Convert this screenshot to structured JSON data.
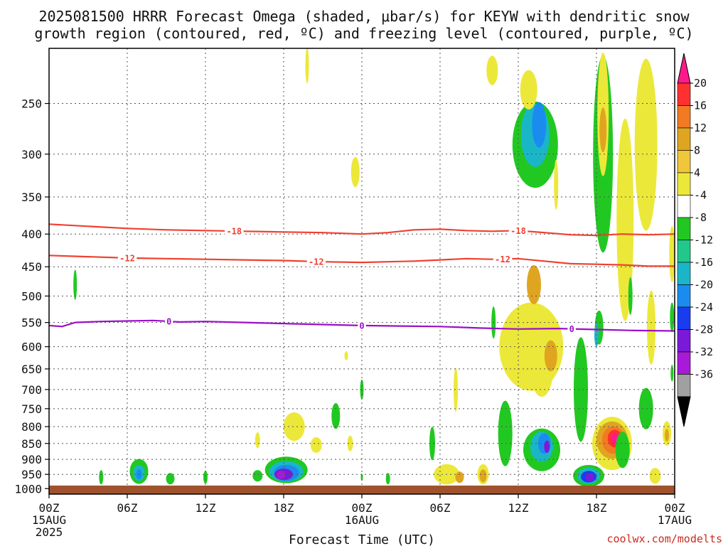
{
  "chart_data": {
    "type": "heatmap",
    "title_line1": "2025081500 HRRR Forecast Omega (shaded, μbar/s) for KEYW with dendritic snow",
    "title_line2": "growth region (contoured, red, ºC) and freezing level (contoured, purple, ºC)",
    "xlabel": "Forecast Time (UTC)",
    "credit": "coolwx.com/modelts",
    "x_ticks": [
      {
        "h": 0,
        "label": "00Z",
        "sub1": "15AUG",
        "sub2": "2025"
      },
      {
        "h": 6,
        "label": "06Z",
        "sub1": "",
        "sub2": ""
      },
      {
        "h": 12,
        "label": "12Z",
        "sub1": "",
        "sub2": ""
      },
      {
        "h": 18,
        "label": "18Z",
        "sub1": "",
        "sub2": ""
      },
      {
        "h": 24,
        "label": "00Z",
        "sub1": "16AUG",
        "sub2": ""
      },
      {
        "h": 30,
        "label": "06Z",
        "sub1": "",
        "sub2": ""
      },
      {
        "h": 36,
        "label": "12Z",
        "sub1": "",
        "sub2": ""
      },
      {
        "h": 42,
        "label": "18Z",
        "sub1": "",
        "sub2": ""
      },
      {
        "h": 48,
        "label": "00Z",
        "sub1": "17AUG",
        "sub2": ""
      }
    ],
    "y_ticks": [
      250,
      300,
      350,
      400,
      450,
      500,
      550,
      600,
      650,
      700,
      750,
      800,
      850,
      900,
      950,
      1000
    ],
    "xlim_hours": [
      0,
      48
    ],
    "ylim_hPa": [
      1020,
      205
    ],
    "y_scale": "log",
    "grid": true,
    "colorbar": {
      "levels": [
        20,
        16,
        12,
        8,
        4,
        -4,
        -8,
        -12,
        -16,
        -20,
        -24,
        -28,
        -32,
        -36
      ],
      "colors": [
        "#ff1a8c",
        "#ff3030",
        "#f27a22",
        "#e0a520",
        "#f0c63a",
        "#ece83a",
        "#ffffff",
        "#22c822",
        "#22c88a",
        "#1ab6c8",
        "#1a8cf0",
        "#1a3cf0",
        "#7a1ad8",
        "#a81ad8",
        "#a0a0a0",
        "#000000"
      ]
    },
    "contours": [
      {
        "name": "-18",
        "color": "#ef4030",
        "labels": [
          {
            "h": 14.2,
            "label": "-18"
          },
          {
            "h": 36.0,
            "label": "-18"
          }
        ],
        "points": [
          [
            0,
            386
          ],
          [
            3,
            389
          ],
          [
            6,
            392
          ],
          [
            9,
            394
          ],
          [
            12,
            395
          ],
          [
            15,
            396
          ],
          [
            18,
            397
          ],
          [
            21,
            398
          ],
          [
            24,
            400
          ],
          [
            26,
            398
          ],
          [
            28,
            394
          ],
          [
            30,
            393
          ],
          [
            32,
            395
          ],
          [
            34,
            396
          ],
          [
            36,
            395
          ],
          [
            38,
            398
          ],
          [
            40,
            401
          ],
          [
            42,
            402
          ],
          [
            44,
            400
          ],
          [
            46,
            401
          ],
          [
            48,
            400
          ]
        ]
      },
      {
        "name": "-12",
        "color": "#ef4030",
        "labels": [
          {
            "h": 6.0,
            "label": "-12"
          },
          {
            "h": 20.5,
            "label": "-12"
          },
          {
            "h": 34.8,
            "label": "-12"
          }
        ],
        "points": [
          [
            0,
            432
          ],
          [
            3,
            434
          ],
          [
            6,
            436
          ],
          [
            9,
            437
          ],
          [
            12,
            438
          ],
          [
            15,
            439
          ],
          [
            18,
            440
          ],
          [
            21,
            442
          ],
          [
            24,
            443
          ],
          [
            26,
            442
          ],
          [
            28,
            441
          ],
          [
            30,
            439
          ],
          [
            32,
            437
          ],
          [
            34,
            438
          ],
          [
            36,
            437
          ],
          [
            38,
            441
          ],
          [
            40,
            445
          ],
          [
            42,
            446
          ],
          [
            44,
            447
          ],
          [
            46,
            449
          ],
          [
            48,
            449
          ]
        ]
      },
      {
        "name": "0",
        "color": "#9a10c8",
        "labels": [
          {
            "h": 9.2,
            "label": "0"
          },
          {
            "h": 24.0,
            "label": "0"
          },
          {
            "h": 40.1,
            "label": "0"
          }
        ],
        "points": [
          [
            0,
            556
          ],
          [
            1,
            558
          ],
          [
            2,
            550
          ],
          [
            4,
            548
          ],
          [
            6,
            547
          ],
          [
            8,
            546
          ],
          [
            10,
            549
          ],
          [
            12,
            548
          ],
          [
            15,
            550
          ],
          [
            18,
            552
          ],
          [
            21,
            554
          ],
          [
            24,
            556
          ],
          [
            27,
            557
          ],
          [
            30,
            558
          ],
          [
            33,
            561
          ],
          [
            36,
            563
          ],
          [
            39,
            562
          ],
          [
            42,
            564
          ],
          [
            45,
            566
          ],
          [
            48,
            567
          ]
        ]
      }
    ],
    "blobs": [
      {
        "h": 2.0,
        "p": 480,
        "rx": 2.5,
        "ry": 45,
        "v": -6
      },
      {
        "h": 4.0,
        "p": 960,
        "rx": 3,
        "ry": 35,
        "v": -6
      },
      {
        "h": 6.9,
        "p": 940,
        "rx": 13,
        "ry": 70,
        "v": -6
      },
      {
        "h": 6.9,
        "p": 945,
        "rx": 8,
        "ry": 40,
        "v": -14
      },
      {
        "h": 6.9,
        "p": 950,
        "rx": 4,
        "ry": 20,
        "v": -19
      },
      {
        "h": 9.3,
        "p": 965,
        "rx": 6,
        "ry": 25,
        "v": -6
      },
      {
        "h": 12.0,
        "p": 960,
        "rx": 3,
        "ry": 30,
        "v": -5
      },
      {
        "h": 16.0,
        "p": 955,
        "rx": 7,
        "ry": 25,
        "v": -6
      },
      {
        "h": 18.2,
        "p": 935,
        "rx": 30,
        "ry": 75,
        "v": -6
      },
      {
        "h": 18.2,
        "p": 940,
        "rx": 24,
        "ry": 55,
        "v": -13
      },
      {
        "h": 18.2,
        "p": 945,
        "rx": 18,
        "ry": 40,
        "v": -19
      },
      {
        "h": 18.0,
        "p": 950,
        "rx": 13,
        "ry": 25,
        "v": -24
      },
      {
        "h": 17.8,
        "p": 952,
        "rx": 6,
        "ry": 13,
        "v": -30
      },
      {
        "h": 16.0,
        "p": 840,
        "rx": 3.5,
        "ry": 35,
        "v": 5
      },
      {
        "h": 18.8,
        "p": 800,
        "rx": 15,
        "ry": 70,
        "v": 5
      },
      {
        "h": 20.5,
        "p": 855,
        "rx": 8,
        "ry": 35,
        "v": 5
      },
      {
        "h": 22.0,
        "p": 770,
        "rx": 6,
        "ry": 60,
        "v": -6
      },
      {
        "h": 22.8,
        "p": 620,
        "rx": 2.5,
        "ry": 10,
        "v": 5
      },
      {
        "h": 23.1,
        "p": 850,
        "rx": 4,
        "ry": 35,
        "v": 5
      },
      {
        "h": 24.0,
        "p": 960,
        "rx": 1.5,
        "ry": 10,
        "v": -6
      },
      {
        "h": 24.0,
        "p": 700,
        "rx": 2.5,
        "ry": 40,
        "v": -6
      },
      {
        "h": 23.5,
        "p": 320,
        "rx": 6,
        "ry": 30,
        "v": 5
      },
      {
        "h": 19.8,
        "p": 218,
        "rx": 2.5,
        "ry": 25,
        "v": 5
      },
      {
        "h": 26.0,
        "p": 965,
        "rx": 3,
        "ry": 25,
        "v": -6
      },
      {
        "h": 29.4,
        "p": 850,
        "rx": 4,
        "ry": 90,
        "v": -6
      },
      {
        "h": 30.5,
        "p": 950,
        "rx": 18,
        "ry": 55,
        "v": 5
      },
      {
        "h": 31.5,
        "p": 960,
        "rx": 6,
        "ry": 25,
        "v": 10
      },
      {
        "h": 31.2,
        "p": 700,
        "rx": 3,
        "ry": 100,
        "v": 5
      },
      {
        "h": 33.3,
        "p": 950,
        "rx": 8,
        "ry": 55,
        "v": 5
      },
      {
        "h": 33.3,
        "p": 955,
        "rx": 5,
        "ry": 30,
        "v": 10
      },
      {
        "h": 35.0,
        "p": 820,
        "rx": 10,
        "ry": 180,
        "v": -6
      },
      {
        "h": 34.1,
        "p": 550,
        "rx": 3,
        "ry": 55,
        "v": -6
      },
      {
        "h": 37.0,
        "p": 600,
        "rx": 45,
        "ry": 180,
        "v": 5
      },
      {
        "h": 37.2,
        "p": 480,
        "rx": 10,
        "ry": 60,
        "v": 10
      },
      {
        "h": 37.8,
        "p": 650,
        "rx": 16,
        "ry": 120,
        "v": 5
      },
      {
        "h": 38.5,
        "p": 620,
        "rx": 9,
        "ry": 60,
        "v": 10
      },
      {
        "h": 37.8,
        "p": 870,
        "rx": 26,
        "ry": 120,
        "v": -6
      },
      {
        "h": 37.8,
        "p": 860,
        "rx": 16,
        "ry": 80,
        "v": -13
      },
      {
        "h": 38.0,
        "p": 850,
        "rx": 9,
        "ry": 50,
        "v": -19
      },
      {
        "h": 38.2,
        "p": 860,
        "rx": 4,
        "ry": 25,
        "v": -24
      },
      {
        "h": 37.3,
        "p": 290,
        "rx": 32,
        "ry": 85,
        "v": -6
      },
      {
        "h": 37.3,
        "p": 280,
        "rx": 20,
        "ry": 60,
        "v": -13
      },
      {
        "h": 37.6,
        "p": 270,
        "rx": 10,
        "ry": 40,
        "v": -18
      },
      {
        "h": 36.8,
        "p": 238,
        "rx": 12,
        "ry": 30,
        "v": 5
      },
      {
        "h": 34.0,
        "p": 222,
        "rx": 8,
        "ry": 20,
        "v": 5
      },
      {
        "h": 38.9,
        "p": 335,
        "rx": 3,
        "ry": 55,
        "v": 5
      },
      {
        "h": 40.8,
        "p": 700,
        "rx": 10,
        "ry": 250,
        "v": -6
      },
      {
        "h": 41.4,
        "p": 955,
        "rx": 22,
        "ry": 60,
        "v": -6
      },
      {
        "h": 41.4,
        "p": 955,
        "rx": 16,
        "ry": 40,
        "v": -14
      },
      {
        "h": 41.4,
        "p": 958,
        "rx": 11,
        "ry": 25,
        "v": -20
      },
      {
        "h": 41.5,
        "p": 960,
        "rx": 6,
        "ry": 15,
        "v": -26
      },
      {
        "h": 43.2,
        "p": 850,
        "rx": 28,
        "ry": 150,
        "v": 5
      },
      {
        "h": 43.2,
        "p": 840,
        "rx": 22,
        "ry": 100,
        "v": 10
      },
      {
        "h": 43.3,
        "p": 840,
        "rx": 16,
        "ry": 70,
        "v": 14
      },
      {
        "h": 43.4,
        "p": 835,
        "rx": 10,
        "ry": 40,
        "v": 18
      },
      {
        "h": 43.4,
        "p": 835,
        "rx": 5,
        "ry": 20,
        "v": 22
      },
      {
        "h": 42.2,
        "p": 560,
        "rx": 6,
        "ry": 60,
        "v": -6
      },
      {
        "h": 42.0,
        "p": 575,
        "rx": 3,
        "ry": 40,
        "v": -13
      },
      {
        "h": 42.5,
        "p": 300,
        "rx": 14,
        "ry": 200,
        "v": -6
      },
      {
        "h": 42.5,
        "p": 260,
        "rx": 8,
        "ry": 110,
        "v": 5
      },
      {
        "h": 42.5,
        "p": 275,
        "rx": 5,
        "ry": 40,
        "v": 10
      },
      {
        "h": 44.2,
        "p": 380,
        "rx": 12,
        "ry": 260,
        "v": 5
      },
      {
        "h": 45.8,
        "p": 290,
        "rx": 16,
        "ry": 170,
        "v": 5
      },
      {
        "h": 46.2,
        "p": 560,
        "rx": 6,
        "ry": 140,
        "v": 5
      },
      {
        "h": 44.0,
        "p": 870,
        "rx": 10,
        "ry": 100,
        "v": -6
      },
      {
        "h": 45.8,
        "p": 750,
        "rx": 10,
        "ry": 100,
        "v": -6
      },
      {
        "h": 46.5,
        "p": 955,
        "rx": 8,
        "ry": 40,
        "v": 5
      },
      {
        "h": 47.4,
        "p": 820,
        "rx": 6,
        "ry": 60,
        "v": 5
      },
      {
        "h": 47.4,
        "p": 825,
        "rx": 3,
        "ry": 25,
        "v": 10
      },
      {
        "h": 47.8,
        "p": 430,
        "rx": 4,
        "ry": 80,
        "v": 5
      },
      {
        "h": 47.8,
        "p": 540,
        "rx": 3,
        "ry": 50,
        "v": -6
      },
      {
        "h": 47.8,
        "p": 660,
        "rx": 2,
        "ry": 30,
        "v": -6
      },
      {
        "h": 44.6,
        "p": 500,
        "rx": 3,
        "ry": 60,
        "v": -6
      }
    ]
  }
}
